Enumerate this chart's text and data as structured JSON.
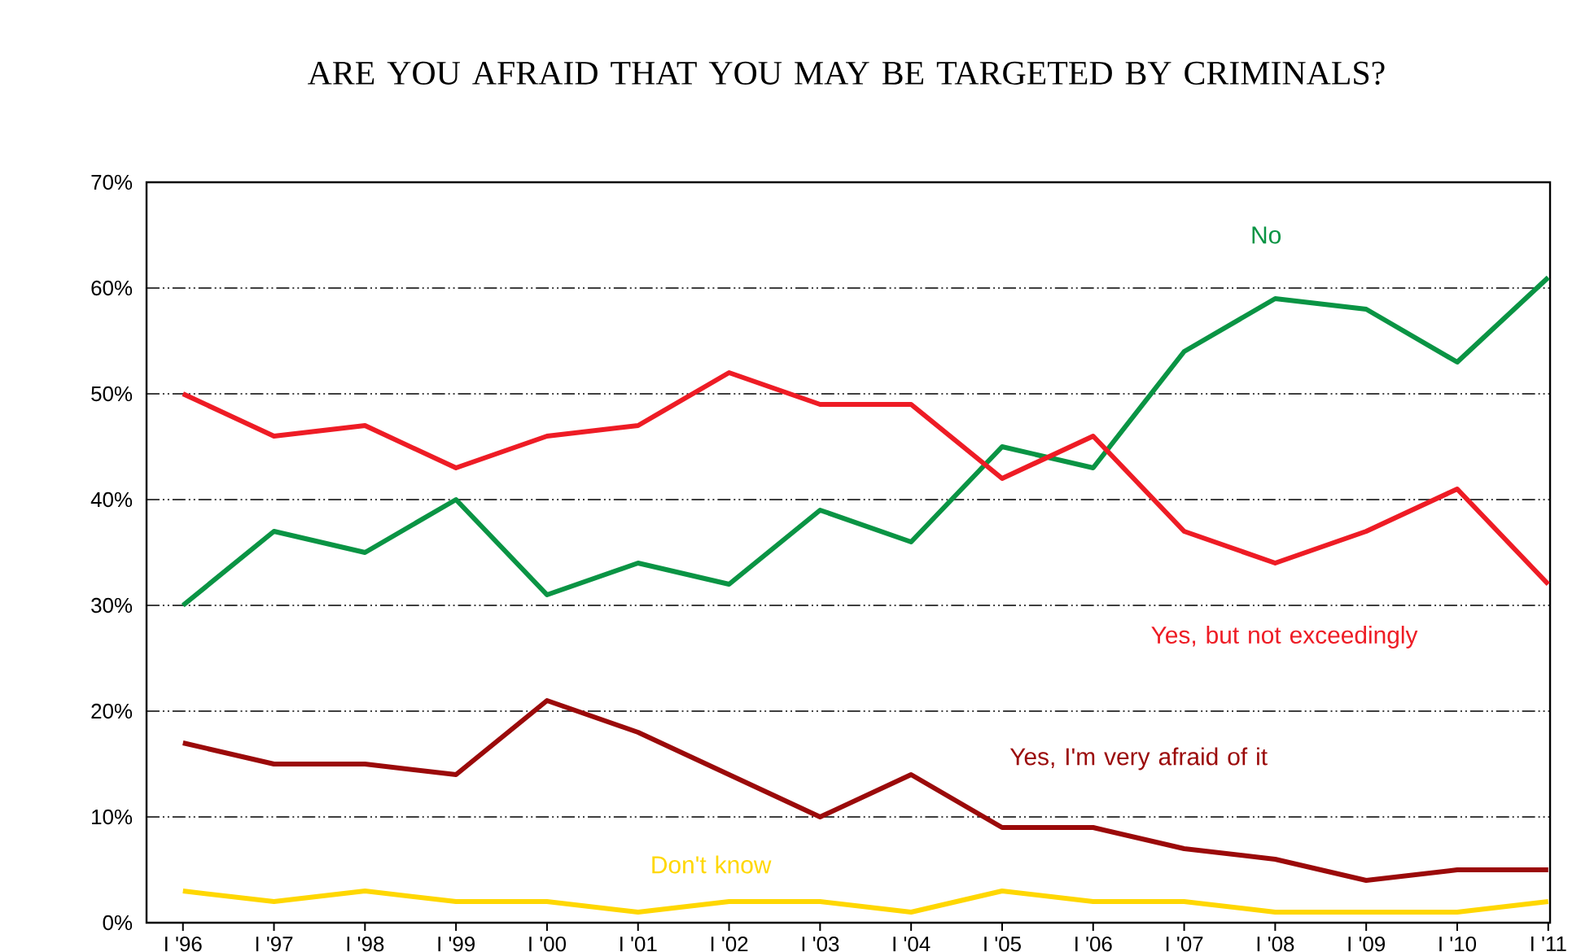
{
  "chart_data": {
    "type": "line",
    "title": "ARE YOU AFRAID THAT YOU MAY BE TARGETED BY CRIMINALS?",
    "categories": [
      "I '96",
      "I '97",
      "I '98",
      "I '99",
      "I '00",
      "I '01",
      "I '02",
      "I '03",
      "I '04",
      "I '05",
      "I '06",
      "I '07",
      "I '08",
      "I '09",
      "I '10",
      "I '11"
    ],
    "series": [
      {
        "name": "No",
        "color": "#0a9444",
        "values": [
          30,
          37,
          35,
          40,
          31,
          34,
          32,
          39,
          36,
          45,
          43,
          54,
          59,
          58,
          53,
          61
        ]
      },
      {
        "name": "Yes, but not exceedingly",
        "color": "#ee1c25",
        "values": [
          50,
          46,
          47,
          43,
          46,
          47,
          52,
          49,
          49,
          42,
          46,
          37,
          34,
          37,
          41,
          32
        ]
      },
      {
        "name": "Yes, I'm very afraid of it",
        "color": "#9b0a0a",
        "values": [
          17,
          15,
          15,
          14,
          21,
          18,
          14,
          10,
          14,
          9,
          9,
          7,
          6,
          4,
          5,
          5
        ]
      },
      {
        "name": "Don't know",
        "color": "#ffd700",
        "values": [
          3,
          2,
          3,
          2,
          2,
          1,
          2,
          2,
          1,
          3,
          2,
          2,
          1,
          1,
          1,
          2
        ]
      }
    ],
    "ylim": [
      0,
      70
    ],
    "yticks": [
      {
        "value": 0,
        "label": "0%"
      },
      {
        "value": 10,
        "label": "10%"
      },
      {
        "value": 20,
        "label": "20%"
      },
      {
        "value": 30,
        "label": "30%"
      },
      {
        "value": 40,
        "label": "40%"
      },
      {
        "value": 50,
        "label": "50%"
      },
      {
        "value": 60,
        "label": "60%"
      },
      {
        "value": 70,
        "label": "70%"
      }
    ],
    "grid": "y",
    "legend": false,
    "marker": "none",
    "line_style": "solid"
  }
}
